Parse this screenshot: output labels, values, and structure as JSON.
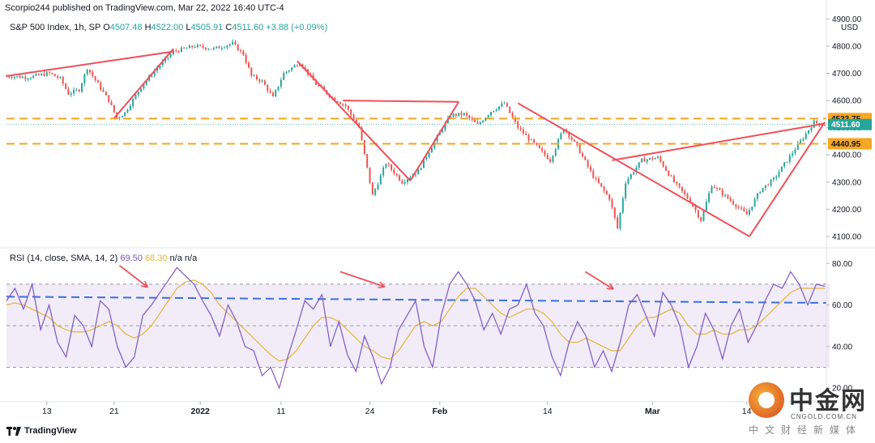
{
  "header": {
    "publisher": "Scorpio244 published on TradingView.com, Mar 22, 2022 16:40 UTC-4"
  },
  "legend": {
    "symbol": "S&P 500 Index, 1h, SP",
    "open_label": "O",
    "open": "4507.48",
    "high_label": "H",
    "high": "4522.00",
    "low_label": "L",
    "low": "4505.91",
    "close_label": "C",
    "close": "4511.60",
    "change": "+3.88 (+0.09%)"
  },
  "rsi_legend": {
    "label": "RSI (14, close, SMA, 14, 2)",
    "rsi": "69.50",
    "sma": "68.30",
    "na1": "n/a",
    "na2": "n/a"
  },
  "footer": {
    "brand": "TradingView"
  },
  "watermark": {
    "name": "中金网",
    "url": "CNGOLD.COM.CN",
    "tagline": "中文财经新媒体"
  },
  "colors": {
    "up": "#26a69a",
    "down": "#ef5350",
    "trendline": "#f0505a",
    "level": "#f5a623",
    "rsi": "#7e57c2",
    "sma": "#e5b43a",
    "midline": "#3d6fe0",
    "band": "#ede7f6"
  },
  "chart_data": [
    {
      "type": "candlestick",
      "title": "S&P 500 Index, 1h, SP",
      "currency": "USD",
      "y_ticks": [
        "4900.00",
        "4800.00",
        "4700.00",
        "4600.00",
        "4500.00",
        "4400.00",
        "4300.00",
        "4200.00",
        "4100.00"
      ],
      "ylim": [
        4070,
        4910
      ],
      "price_labels": [
        {
          "text": "4533.75",
          "value": 4533.75
        },
        {
          "text": "4511.60",
          "value": 4511.6
        },
        {
          "text": "4440.95",
          "value": 4440.95
        }
      ],
      "horizontal_levels": [
        4533.75,
        4440.95
      ],
      "x_ticks": [
        "13",
        "21",
        "2022",
        "11",
        "24",
        "Feb",
        "14",
        "Mar",
        "14"
      ],
      "x_tick_index": [
        15,
        40,
        72,
        102,
        135,
        161,
        201,
        240,
        275
      ],
      "bars": 305,
      "path": [
        [
          0,
          4690
        ],
        [
          8,
          4685
        ],
        [
          16,
          4700
        ],
        [
          20,
          4680
        ],
        [
          23,
          4625
        ],
        [
          27,
          4640
        ],
        [
          30,
          4720
        ],
        [
          34,
          4660
        ],
        [
          38,
          4600
        ],
        [
          41,
          4535
        ],
        [
          44,
          4555
        ],
        [
          50,
          4650
        ],
        [
          56,
          4720
        ],
        [
          62,
          4780
        ],
        [
          70,
          4800
        ],
        [
          77,
          4790
        ],
        [
          84,
          4810
        ],
        [
          88,
          4770
        ],
        [
          91,
          4690
        ],
        [
          95,
          4670
        ],
        [
          99,
          4610
        ],
        [
          103,
          4700
        ],
        [
          109,
          4740
        ],
        [
          115,
          4660
        ],
        [
          121,
          4610
        ],
        [
          126,
          4580
        ],
        [
          131,
          4500
        ],
        [
          136,
          4250
        ],
        [
          141,
          4370
        ],
        [
          147,
          4300
        ],
        [
          153,
          4340
        ],
        [
          159,
          4450
        ],
        [
          165,
          4545
        ],
        [
          170,
          4550
        ],
        [
          175,
          4510
        ],
        [
          180,
          4560
        ],
        [
          185,
          4590
        ],
        [
          190,
          4500
        ],
        [
          196,
          4440
        ],
        [
          202,
          4380
        ],
        [
          207,
          4500
        ],
        [
          212,
          4430
        ],
        [
          218,
          4320
        ],
        [
          224,
          4240
        ],
        [
          227,
          4130
        ],
        [
          230,
          4300
        ],
        [
          236,
          4380
        ],
        [
          242,
          4390
        ],
        [
          248,
          4300
        ],
        [
          254,
          4230
        ],
        [
          258,
          4160
        ],
        [
          262,
          4290
        ],
        [
          268,
          4240
        ],
        [
          275,
          4180
        ],
        [
          280,
          4270
        ],
        [
          285,
          4310
        ],
        [
          290,
          4380
        ],
        [
          295,
          4450
        ],
        [
          300,
          4520
        ],
        [
          304,
          4511
        ]
      ],
      "trendlines": [
        {
          "from": [
            0,
            4690
          ],
          "to": [
            62,
            4780
          ]
        },
        {
          "from": [
            40,
            4535
          ],
          "to": [
            62,
            4790
          ]
        },
        {
          "from": [
            108,
            4745
          ],
          "to": [
            150,
            4305
          ]
        },
        {
          "from": [
            150,
            4305
          ],
          "to": [
            168,
            4595
          ]
        },
        {
          "from": [
            125,
            4600
          ],
          "to": [
            168,
            4595
          ]
        },
        {
          "from": [
            190,
            4590
          ],
          "to": [
            276,
            4100
          ]
        },
        {
          "from": [
            225,
            4380
          ],
          "to": [
            304,
            4515
          ]
        },
        {
          "from": [
            276,
            4100
          ],
          "to": [
            304,
            4520
          ]
        }
      ]
    },
    {
      "type": "line",
      "title": "RSI (14, close, SMA, 14, 2)",
      "y_ticks": [
        "80.00",
        "60.00",
        "40.00",
        "20.00"
      ],
      "ylim": [
        15,
        84
      ],
      "band": [
        30,
        70
      ],
      "midline": 50,
      "dashed_level": {
        "from": 64,
        "to": 61
      },
      "series": [
        {
          "name": "RSI",
          "values": [
            62,
            68,
            58,
            70,
            48,
            60,
            42,
            35,
            55,
            50,
            40,
            62,
            58,
            40,
            30,
            35,
            55,
            60,
            66,
            72,
            78,
            74,
            70,
            62,
            55,
            45,
            60,
            52,
            40,
            38,
            26,
            30,
            20,
            35,
            48,
            62,
            58,
            65,
            40,
            52,
            36,
            28,
            45,
            35,
            22,
            30,
            48,
            55,
            62,
            40,
            30,
            55,
            70,
            76,
            70,
            62,
            48,
            56,
            46,
            58,
            60,
            70,
            56,
            50,
            35,
            26,
            42,
            52,
            45,
            30,
            38,
            28,
            42,
            60,
            65,
            55,
            45,
            66,
            60,
            50,
            30,
            40,
            56,
            48,
            34,
            50,
            58,
            42,
            50,
            62,
            70,
            68,
            76,
            70,
            60,
            70,
            69
          ]
        },
        {
          "name": "SMA",
          "values": [
            60,
            61,
            60,
            58,
            56,
            54,
            50,
            48,
            47,
            47,
            48,
            50,
            52,
            50,
            46,
            44,
            46,
            50,
            56,
            62,
            68,
            71,
            72,
            70,
            66,
            60,
            56,
            52,
            48,
            44,
            40,
            36,
            33,
            34,
            38,
            44,
            50,
            54,
            54,
            52,
            48,
            44,
            40,
            38,
            35,
            34,
            38,
            44,
            50,
            52,
            50,
            52,
            58,
            64,
            68,
            68,
            64,
            60,
            56,
            54,
            56,
            58,
            58,
            56,
            52,
            46,
            42,
            42,
            44,
            42,
            40,
            38,
            38,
            44,
            50,
            54,
            54,
            56,
            58,
            56,
            50,
            46,
            46,
            48,
            46,
            46,
            48,
            48,
            50,
            54,
            58,
            62,
            66,
            68,
            68,
            68,
            68
          ]
        }
      ],
      "arrows": [
        {
          "from": [
            42,
            79
          ],
          "to": [
            52,
            69
          ]
        },
        {
          "from": [
            124,
            76
          ],
          "to": [
            140,
            69
          ]
        },
        {
          "from": [
            215,
            76
          ],
          "to": [
            225,
            68
          ]
        }
      ]
    }
  ]
}
